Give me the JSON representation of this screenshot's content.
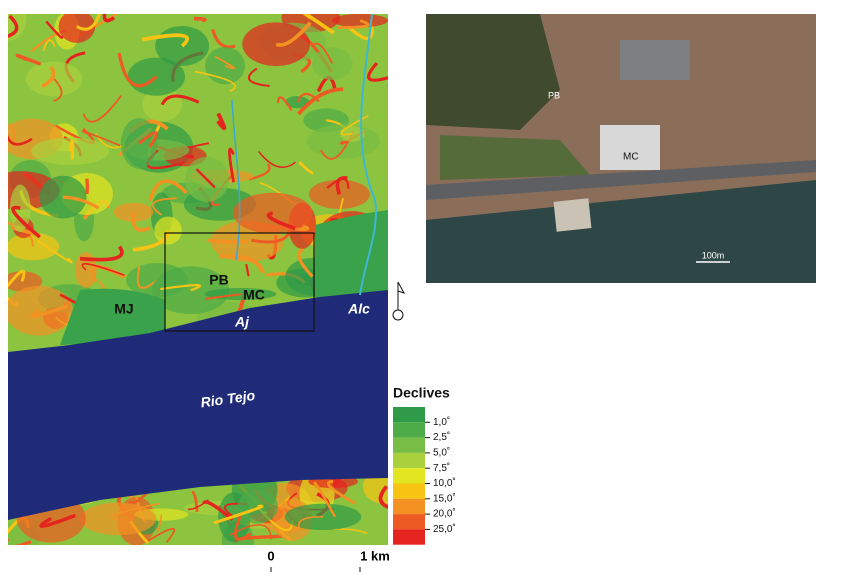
{
  "map": {
    "places": [
      "MJ",
      "PB",
      "MC"
    ],
    "water_places": [
      "Aj",
      "Alc",
      "Rio Tejo"
    ]
  },
  "legend": {
    "title": "Declives",
    "colors": [
      "#2f9a47",
      "#4dab48",
      "#78bd45",
      "#a9d03d",
      "#e2e51f",
      "#f8c414",
      "#f39223",
      "#ee5a24",
      "#e5231f"
    ],
    "labels": [
      "1,0˚",
      "2,5˚",
      "5,0˚",
      "7,5˚",
      "10,0˚",
      "15,0˚",
      "20,0˚",
      "25,0˚"
    ]
  },
  "scale_bar": {
    "start": "0",
    "end": "1 km"
  },
  "photo": {
    "labels": [
      "PB",
      "MC"
    ],
    "scale": "100m"
  }
}
